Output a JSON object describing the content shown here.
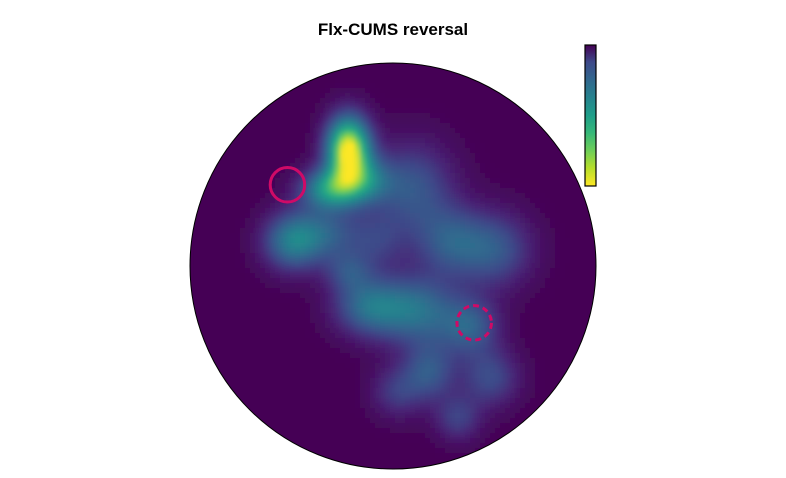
{
  "chart_data": {
    "type": "heatmap",
    "title": "Flx-CUMS reversal",
    "arena_shape": "circle",
    "colormap": "viridis",
    "colorbar": {
      "orientation": "vertical",
      "placement": "top-right",
      "ticks": []
    },
    "density_peaks": [
      {
        "x": -0.22,
        "y": 0.58,
        "sx": 0.075,
        "sy": 0.11,
        "w": 1.0
      },
      {
        "x": -0.31,
        "y": 0.38,
        "sx": 0.1,
        "sy": 0.07,
        "w": 0.55
      },
      {
        "x": -0.15,
        "y": 0.42,
        "sx": 0.1,
        "sy": 0.08,
        "w": 0.4
      },
      {
        "x": -0.5,
        "y": 0.12,
        "sx": 0.1,
        "sy": 0.1,
        "w": 0.42
      },
      {
        "x": -0.33,
        "y": 0.16,
        "sx": 0.12,
        "sy": 0.1,
        "w": 0.3
      },
      {
        "x": 0.1,
        "y": 0.38,
        "sx": 0.14,
        "sy": 0.16,
        "w": 0.3
      },
      {
        "x": 0.5,
        "y": 0.08,
        "sx": 0.13,
        "sy": 0.13,
        "w": 0.3
      },
      {
        "x": 0.28,
        "y": 0.12,
        "sx": 0.12,
        "sy": 0.12,
        "w": 0.28
      },
      {
        "x": -0.12,
        "y": -0.2,
        "sx": 0.12,
        "sy": 0.1,
        "w": 0.38
      },
      {
        "x": 0.12,
        "y": -0.22,
        "sx": 0.14,
        "sy": 0.12,
        "w": 0.4
      },
      {
        "x": -0.22,
        "y": -0.03,
        "sx": 0.08,
        "sy": 0.07,
        "w": 0.22
      },
      {
        "x": 0.38,
        "y": -0.3,
        "sx": 0.1,
        "sy": 0.1,
        "w": 0.32
      },
      {
        "x": 0.18,
        "y": -0.52,
        "sx": 0.09,
        "sy": 0.1,
        "w": 0.3
      },
      {
        "x": 0.48,
        "y": -0.55,
        "sx": 0.1,
        "sy": 0.1,
        "w": 0.26
      },
      {
        "x": 0.32,
        "y": -0.75,
        "sx": 0.08,
        "sy": 0.08,
        "w": 0.22
      },
      {
        "x": 0.02,
        "y": -0.62,
        "sx": 0.09,
        "sy": 0.09,
        "w": 0.2
      },
      {
        "x": -0.08,
        "y": 0.12,
        "sx": 0.1,
        "sy": 0.1,
        "w": 0.18
      }
    ],
    "targets": [
      {
        "name": "target-zone-solid",
        "x": -0.52,
        "y": 0.4,
        "r": 0.085,
        "style": "solid",
        "color": "#cf0a67"
      },
      {
        "name": "target-zone-dashed",
        "x": 0.4,
        "y": -0.28,
        "r": 0.085,
        "style": "dashed",
        "color": "#cf0a67"
      }
    ]
  }
}
